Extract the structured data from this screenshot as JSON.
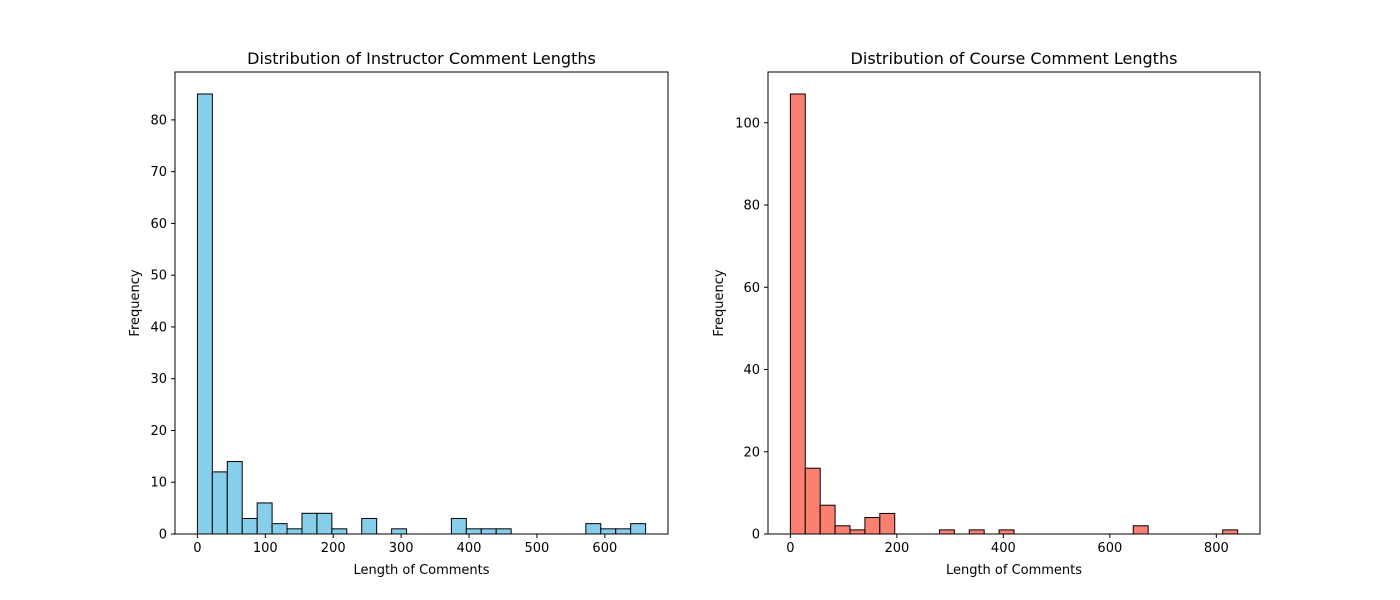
{
  "chart_data": [
    {
      "type": "bar",
      "title": "Distribution of Instructor Comment Lengths",
      "xlabel": "Length of Comments",
      "ylabel": "Frequency",
      "color": "#87CEEB",
      "edge_color": "#000000",
      "xlim": [
        -33,
        693
      ],
      "ylim": [
        0,
        89.25
      ],
      "xticks": [
        0,
        100,
        200,
        300,
        400,
        500,
        600
      ],
      "yticks": [
        0,
        10,
        20,
        30,
        40,
        50,
        60,
        70,
        80
      ],
      "bin_start": 0,
      "bin_width": 22,
      "values": [
        85,
        12,
        14,
        3,
        6,
        2,
        1,
        4,
        4,
        1,
        0,
        3,
        0,
        1,
        0,
        0,
        0,
        3,
        1,
        1,
        1,
        0,
        0,
        0,
        0,
        0,
        2,
        1,
        1,
        2
      ],
      "grid": false,
      "legend": "none"
    },
    {
      "type": "bar",
      "title": "Distribution of Course Comment Lengths",
      "xlabel": "Length of Comments",
      "ylabel": "Frequency",
      "color": "#FA8072",
      "edge_color": "#000000",
      "xlim": [
        -42,
        882
      ],
      "ylim": [
        0,
        112.35
      ],
      "xticks": [
        0,
        200,
        400,
        600,
        800
      ],
      "yticks": [
        0,
        20,
        40,
        60,
        80,
        100
      ],
      "bin_start": 0,
      "bin_width": 28,
      "values": [
        107,
        16,
        7,
        2,
        1,
        4,
        5,
        0,
        0,
        0,
        1,
        0,
        1,
        0,
        1,
        0,
        0,
        0,
        0,
        0,
        0,
        0,
        0,
        2,
        0,
        0,
        0,
        0,
        0,
        1
      ],
      "grid": false,
      "legend": "none"
    }
  ]
}
